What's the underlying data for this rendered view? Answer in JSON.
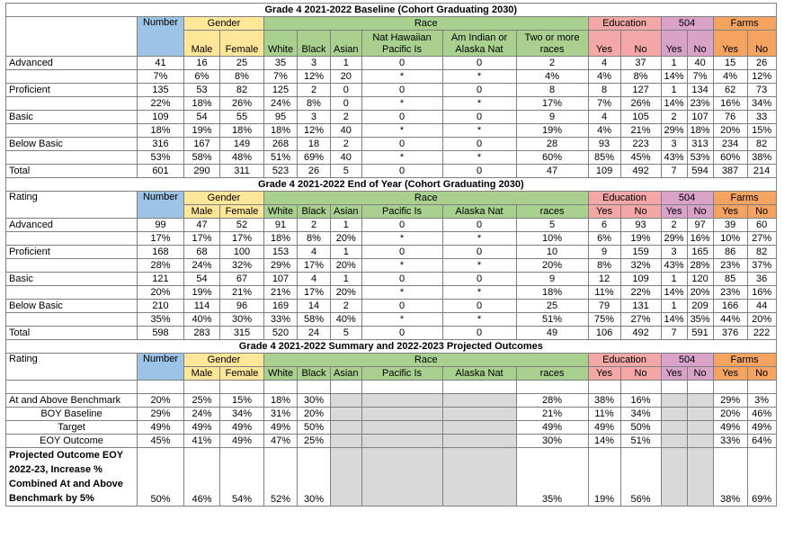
{
  "colors": {
    "number": "#9dc3e6",
    "gender": "#ffe699",
    "race": "#a9d08e",
    "education": "#f4a7a7",
    "s504": "#d9a3c9",
    "farms": "#f4a460",
    "na": "#d9d9d9"
  },
  "headers": {
    "number": "Number",
    "gender": "Gender",
    "race": "Race",
    "education": "Education",
    "s504": "504",
    "farms": "Farms"
  },
  "sections": [
    {
      "title": "Grade 4 2021-2022 Baseline (Cohort Graduating 2030)",
      "label_header": "",
      "sub": [
        "Male",
        "Female",
        "White",
        "Black",
        "Asian",
        "Nat Hawaiian Pacific Is",
        "Am Indian or Alaska Nat",
        "Two or more races",
        "Yes",
        "No",
        "Yes",
        "No",
        "Yes",
        "No"
      ],
      "rows": [
        {
          "label": "Advanced",
          "v": [
            "41",
            "16",
            "25",
            "35",
            "3",
            "1",
            "0",
            "0",
            "2",
            "4",
            "37",
            "1",
            "40",
            "15",
            "26"
          ]
        },
        {
          "label": "",
          "v": [
            "7%",
            "6%",
            "8%",
            "7%",
            "12%",
            "20",
            "*",
            "*",
            "4%",
            "4%",
            "8%",
            "14%",
            "7%",
            "4%",
            "12%"
          ]
        },
        {
          "label": "Proficient",
          "v": [
            "135",
            "53",
            "82",
            "125",
            "2",
            "0",
            "0",
            "0",
            "8",
            "8",
            "127",
            "1",
            "134",
            "62",
            "73"
          ]
        },
        {
          "label": "",
          "v": [
            "22%",
            "18%",
            "26%",
            "24%",
            "8%",
            "0",
            "*",
            "*",
            "17%",
            "7%",
            "26%",
            "14%",
            "23%",
            "16%",
            "34%"
          ]
        },
        {
          "label": "Basic",
          "v": [
            "109",
            "54",
            "55",
            "95",
            "3",
            "2",
            "0",
            "0",
            "9",
            "4",
            "105",
            "2",
            "107",
            "76",
            "33"
          ]
        },
        {
          "label": "",
          "v": [
            "18%",
            "19%",
            "18%",
            "18%",
            "12%",
            "40",
            "*",
            "*",
            "19%",
            "4%",
            "21%",
            "29%",
            "18%",
            "20%",
            "15%"
          ]
        },
        {
          "label": "Below Basic",
          "v": [
            "316",
            "167",
            "149",
            "268",
            "18",
            "2",
            "0",
            "0",
            "28",
            "93",
            "223",
            "3",
            "313",
            "234",
            "82"
          ]
        },
        {
          "label": "",
          "v": [
            "53%",
            "58%",
            "48%",
            "51%",
            "69%",
            "40",
            "*",
            "*",
            "60%",
            "85%",
            "45%",
            "43%",
            "53%",
            "60%",
            "38%"
          ]
        },
        {
          "label": "Total",
          "v": [
            "601",
            "290",
            "311",
            "523",
            "26",
            "5",
            "0",
            "0",
            "47",
            "109",
            "492",
            "7",
            "594",
            "387",
            "214"
          ]
        }
      ]
    },
    {
      "title": "Grade 4 2021-2022 End of Year (Cohort Graduating 2030)",
      "label_header": "Rating",
      "sub": [
        "Male",
        "Female",
        "White",
        "Black",
        "Asian",
        "Pacific Is",
        "Alaska Nat",
        "races",
        "Yes",
        "No",
        "Yes",
        "No",
        "Yes",
        "No"
      ],
      "rows": [
        {
          "label": "Advanced",
          "v": [
            "99",
            "47",
            "52",
            "91",
            "2",
            "1",
            "0",
            "0",
            "5",
            "6",
            "93",
            "2",
            "97",
            "39",
            "60"
          ]
        },
        {
          "label": "",
          "v": [
            "17%",
            "17%",
            "17%",
            "18%",
            "8%",
            "20%",
            "*",
            "*",
            "10%",
            "6%",
            "19%",
            "29%",
            "16%",
            "10%",
            "27%"
          ]
        },
        {
          "label": "Proficient",
          "v": [
            "168",
            "68",
            "100",
            "153",
            "4",
            "1",
            "0",
            "0",
            "10",
            "9",
            "159",
            "3",
            "165",
            "86",
            "82"
          ]
        },
        {
          "label": "",
          "v": [
            "28%",
            "24%",
            "32%",
            "29%",
            "17%",
            "20%",
            "*",
            "*",
            "20%",
            "8%",
            "32%",
            "43%",
            "28%",
            "23%",
            "37%"
          ]
        },
        {
          "label": "Basic",
          "v": [
            "121",
            "54",
            "67",
            "107",
            "4",
            "1",
            "0",
            "0",
            "9",
            "12",
            "109",
            "1",
            "120",
            "85",
            "36"
          ]
        },
        {
          "label": "",
          "v": [
            "20%",
            "19%",
            "21%",
            "21%",
            "17%",
            "20%",
            "*",
            "*",
            "18%",
            "11%",
            "22%",
            "14%",
            "20%",
            "23%",
            "16%"
          ]
        },
        {
          "label": "Below Basic",
          "v": [
            "210",
            "114",
            "96",
            "169",
            "14",
            "2",
            "0",
            "0",
            "25",
            "79",
            "131",
            "1",
            "209",
            "166",
            "44"
          ]
        },
        {
          "label": "",
          "v": [
            "35%",
            "40%",
            "30%",
            "33%",
            "58%",
            "40%",
            "*",
            "*",
            "51%",
            "75%",
            "27%",
            "14%",
            "35%",
            "44%",
            "20%"
          ]
        },
        {
          "label": "Total",
          "v": [
            "598",
            "283",
            "315",
            "520",
            "24",
            "5",
            "0",
            "0",
            "49",
            "106",
            "492",
            "7",
            "591",
            "376",
            "222"
          ]
        }
      ]
    }
  ],
  "summary": {
    "title": "Grade 4 2021-2022 Summary and 2022-2023 Projected Outcomes",
    "label_header": "Rating",
    "sub": [
      "Male",
      "Female",
      "White",
      "Black",
      "Asian",
      "Pacific Is",
      "Alaska Nat",
      "races",
      "Yes",
      "No",
      "Yes",
      "No",
      "Yes",
      "No"
    ],
    "rows": [
      {
        "label": "At and Above Benchmark",
        "v": [
          "20%",
          "25%",
          "15%",
          "18%",
          "30%",
          "",
          "",
          "",
          "28%",
          "38%",
          "16%",
          "",
          "",
          "29%",
          "3%"
        ]
      },
      {
        "label": "BOY Baseline",
        "v": [
          "29%",
          "24%",
          "34%",
          "31%",
          "20%",
          "",
          "",
          "",
          "21%",
          "11%",
          "34%",
          "",
          "",
          "20%",
          "46%"
        ]
      },
      {
        "label": "Target",
        "v": [
          "49%",
          "49%",
          "49%",
          "49%",
          "50%",
          "",
          "",
          "",
          "49%",
          "49%",
          "50%",
          "",
          "",
          "49%",
          "49%"
        ]
      },
      {
        "label": "EOY Outcome",
        "v": [
          "45%",
          "41%",
          "49%",
          "47%",
          "25%",
          "",
          "",
          "",
          "30%",
          "14%",
          "51%",
          "",
          "",
          "33%",
          "64%"
        ]
      },
      {
        "label": "Projected Outcome EOY 2022-23, Increase % Combined At and Above Benchmark by 5%",
        "v": [
          "50%",
          "46%",
          "54%",
          "52%",
          "30%",
          "",
          "",
          "",
          "35%",
          "19%",
          "56%",
          "",
          "",
          "38%",
          "69%"
        ]
      }
    ]
  }
}
